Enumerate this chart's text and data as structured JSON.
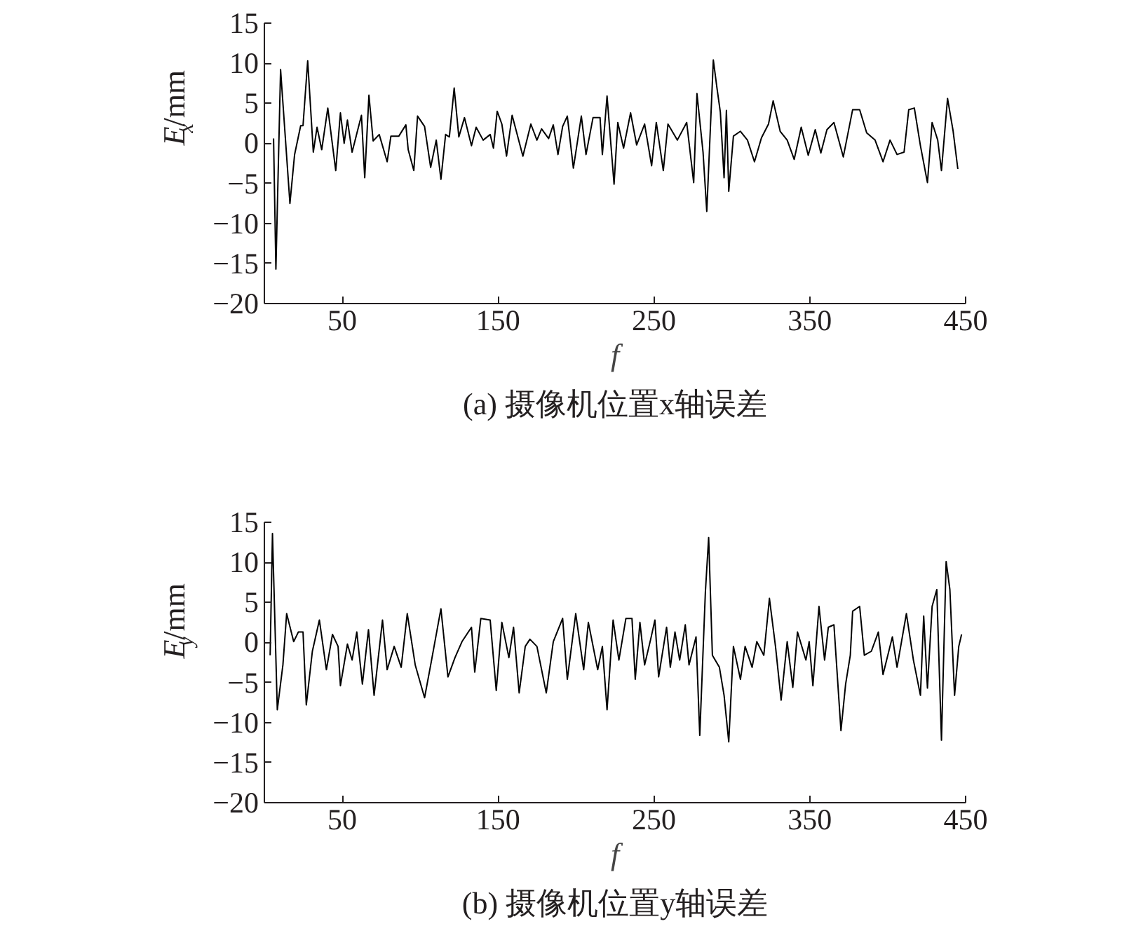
{
  "chart_data": [
    {
      "type": "line",
      "title": "(a) 摄像机位置x轴误差",
      "xlabel": "f",
      "ylabel": "E$_{x}$/mm",
      "xlim": [
        0,
        450
      ],
      "xticks": [
        50,
        150,
        250,
        350,
        450
      ],
      "ylim": [
        -20,
        15
      ],
      "yticks": [
        -20,
        -15,
        -10,
        -5,
        0,
        5,
        10,
        15
      ],
      "grid": false,
      "series": [
        {
          "color": "#000000",
          "x": [
            5.9,
            7.4,
            10.4,
            16.4,
            19.4,
            23.3,
            24.8,
            27.8,
            31.4,
            33.8,
            36.8,
            40.7,
            45.8,
            48.8,
            51.2,
            53.3,
            56.3,
            62.3,
            64.4,
            67.1,
            69.8,
            73.7,
            78.8,
            81.2,
            86.3,
            90.8,
            92.3,
            95.9,
            98.3,
            102.8,
            106.7,
            110.3,
            113.3,
            116.3,
            118.7,
            121.8,
            124.8,
            128.4,
            132.9,
            135.9,
            140.4,
            144.9,
            147.0,
            149.4,
            152.4,
            155.4,
            159.0,
            165.9,
            171.0,
            174.9,
            177.9,
            182.4,
            185.4,
            188.4,
            191.4,
            194.4,
            198.3,
            203.4,
            206.4,
            210.9,
            215.4,
            216.9,
            219.9,
            224.4,
            226.8,
            230.5,
            235,
            238.9,
            244,
            248.5,
            251.5,
            256,
            259,
            265,
            271,
            275.5,
            277.6,
            281.5,
            283.9,
            288.1,
            290.5,
            292.6,
            295,
            296.5,
            298,
            301,
            305.5,
            310,
            314.5,
            319,
            323.5,
            326.5,
            331,
            335.5,
            340,
            344.5,
            349,
            353.5,
            357.1,
            361,
            365.5,
            371.5,
            377.5,
            382,
            386.5,
            391.9,
            397,
            401.5,
            406,
            410.5,
            413.5,
            417.1,
            421,
            425.5,
            428.5,
            432.1,
            434.5,
            438.4,
            442,
            445
          ],
          "values": [
            0.6,
            -15.7,
            9.2,
            -7.5,
            -1.4,
            2.2,
            2.2,
            10.3,
            -1.1,
            2,
            -0.8,
            4.4,
            -3.4,
            3.8,
            0,
            2.9,
            -1.1,
            3.5,
            -4.3,
            6,
            0.3,
            1.1,
            -2.3,
            0.9,
            0.9,
            2.3,
            -0.8,
            -3.4,
            3.4,
            2.1,
            -3,
            0.4,
            -4.5,
            1.1,
            0.8,
            6.9,
            0.8,
            3.2,
            -0.3,
            2,
            0.4,
            1.1,
            -0.6,
            4,
            2.4,
            -1.6,
            3.5,
            -1.6,
            2.4,
            0.4,
            1.8,
            0.6,
            2.3,
            -1.4,
            2.1,
            3.4,
            -3.1,
            3.4,
            -1.4,
            3.2,
            3.2,
            -1.4,
            5.9,
            -5.1,
            2.6,
            -0.6,
            3.8,
            -0.2,
            2.4,
            -2.8,
            2.6,
            -3.4,
            2.4,
            0.4,
            2.6,
            -4.9,
            6.2,
            -1.1,
            -8.5,
            10.4,
            6.8,
            3.9,
            -4.3,
            4.1,
            -6,
            0.9,
            1.5,
            0.4,
            -2.3,
            0.7,
            2.4,
            5.3,
            1.5,
            0.4,
            -2,
            2,
            -1.5,
            1.7,
            -1.2,
            1.7,
            2.6,
            -1.7,
            4.2,
            4.2,
            1.3,
            0.4,
            -2.3,
            0.4,
            -1.4,
            -1.1,
            4.2,
            4.4,
            -0.3,
            -4.9,
            2.6,
            0.4,
            -3.4,
            5.6,
            1.5,
            -3.2
          ]
        }
      ]
    },
    {
      "type": "line",
      "title": "(b) 摄像机位置y轴误差",
      "xlabel": "f",
      "ylabel": "E$_{y}$/mm",
      "xlim": [
        0,
        450
      ],
      "xticks": [
        50,
        150,
        250,
        350,
        450
      ],
      "ylim": [
        -20,
        15
      ],
      "yticks": [
        -20,
        -15,
        -10,
        -5,
        0,
        5,
        10,
        15
      ],
      "grid": false,
      "series": [
        {
          "color": "#000000",
          "x": [
            3.7,
            5.2,
            8.3,
            11.9,
            14.3,
            18.8,
            21.8,
            24.8,
            26.9,
            30.8,
            35.3,
            39.8,
            43.7,
            47.3,
            48.8,
            53.3,
            56.3,
            59.3,
            62.9,
            66.8,
            70.4,
            75.8,
            78.8,
            83.3,
            87.8,
            91.7,
            96.8,
            102.8,
            107.3,
            113.3,
            117.8,
            122.3,
            126.8,
            132.9,
            135,
            138.9,
            144.9,
            148.8,
            152.4,
            156.9,
            159.9,
            163.5,
            167.4,
            170.4,
            174.9,
            180.9,
            185.4,
            191.4,
            194.4,
            199.8,
            204.9,
            207.9,
            213.9,
            216.9,
            219.9,
            223.8,
            227.5,
            232,
            235.9,
            238,
            241,
            244,
            247.9,
            250.6,
            253,
            258.1,
            260.5,
            263.5,
            266.5,
            270.1,
            272.5,
            277,
            279.4,
            283,
            285.1,
            287.5,
            292,
            295,
            298,
            301,
            305.5,
            308.5,
            313,
            316,
            320.5,
            324.1,
            328,
            331.6,
            335.5,
            339.1,
            342.1,
            347.5,
            349.6,
            352,
            355.9,
            359.5,
            361.9,
            365.5,
            370,
            373,
            376,
            377.5,
            382,
            385,
            389.5,
            394,
            397,
            403,
            406,
            412,
            416.5,
            421,
            423.1,
            425.5,
            428.5,
            431.5,
            434.5,
            437.5,
            439.9,
            442.9,
            445.6,
            447.4
          ],
          "values": [
            -1.6,
            13.6,
            -8.4,
            -2.8,
            3.6,
            0.1,
            1.3,
            1.3,
            -7.8,
            -1.1,
            2.8,
            -3.4,
            1,
            -0.5,
            -5.4,
            -0.2,
            -2.2,
            1.3,
            -5.2,
            1.6,
            -6.6,
            2.8,
            -3.4,
            -0.5,
            -3.1,
            3.6,
            -2.8,
            -6.9,
            -2.2,
            4.2,
            -4.3,
            -1.9,
            0.1,
            1.9,
            -3.7,
            3,
            2.8,
            -6,
            2.5,
            -1.9,
            1.9,
            -6.3,
            -0.5,
            0.4,
            -0.5,
            -6.3,
            0.1,
            3,
            -4.6,
            3.6,
            -3.4,
            2.5,
            -3.4,
            -0.5,
            -8.4,
            2.8,
            -2.2,
            3,
            3,
            -4.6,
            2.5,
            -2.8,
            0.4,
            2.8,
            -4.3,
            1.9,
            -3.1,
            1.3,
            -2.2,
            2.2,
            -2.8,
            0.7,
            -11.6,
            6.3,
            13.1,
            -1.6,
            -3.1,
            -6.6,
            -12.4,
            -0.5,
            -4.6,
            -0.5,
            -3.1,
            0.1,
            -1.6,
            5.5,
            -0.5,
            -7.2,
            0.1,
            -5.6,
            1.3,
            -2.2,
            0.1,
            -5.4,
            4.5,
            -2.2,
            1.9,
            2.2,
            -11,
            -5.2,
            -1.6,
            3.9,
            4.5,
            -1.6,
            -1.1,
            1.3,
            -4,
            0.7,
            -3.1,
            3.6,
            -2.2,
            -6.6,
            3.3,
            -5.7,
            4.5,
            6.6,
            -12.2,
            10.1,
            6.6,
            -6.6,
            -0.5,
            1
          ]
        }
      ]
    }
  ]
}
